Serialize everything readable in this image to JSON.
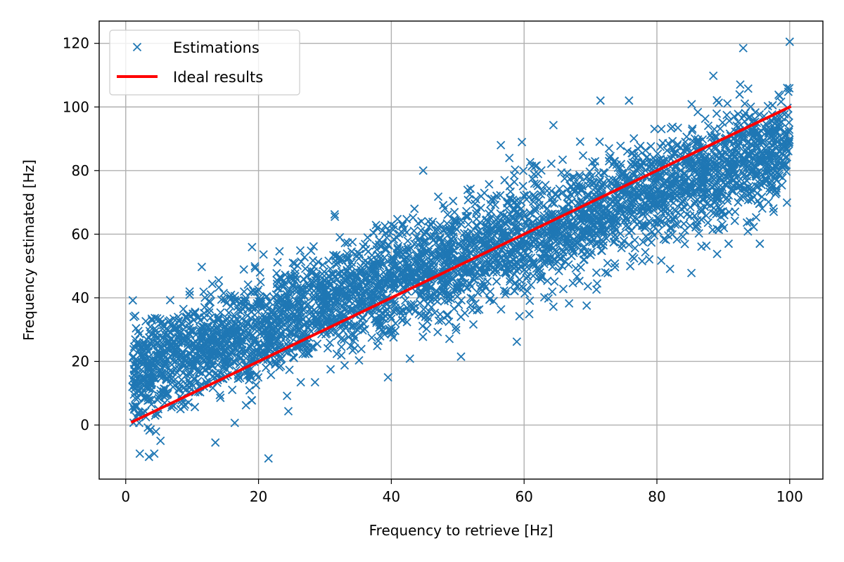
{
  "chart_data": {
    "type": "scatter",
    "title": "",
    "xlabel": "Frequency to retrieve [Hz]",
    "ylabel": "Frequency estimated [Hz]",
    "xlim": [
      -4,
      105
    ],
    "ylim": [
      -17,
      127
    ],
    "xticks": [
      0,
      20,
      40,
      60,
      80,
      100
    ],
    "yticks": [
      0,
      20,
      40,
      60,
      80,
      100,
      120
    ],
    "grid": true,
    "legend_position": "top-left",
    "series": [
      {
        "name": "Estimations",
        "kind": "scatter",
        "marker": "x",
        "color": "#1f77b4",
        "trend": {
          "x_range": [
            1,
            100
          ],
          "offset_at_x1": 15,
          "offset_at_x100": -12,
          "noise_sd": 8.5,
          "count": 4000
        },
        "outliers": [
          {
            "x": 21.5,
            "y": -10.5
          },
          {
            "x": 44.8,
            "y": 80.0
          },
          {
            "x": 58.9,
            "y": 26.2
          },
          {
            "x": 93.0,
            "y": 118.5
          },
          {
            "x": 100.0,
            "y": 120.5
          },
          {
            "x": 95.5,
            "y": 57.0
          },
          {
            "x": 85.2,
            "y": 47.8
          },
          {
            "x": 71.5,
            "y": 102.0
          },
          {
            "x": 50.5,
            "y": 21.5
          },
          {
            "x": 39.5,
            "y": 15.0
          },
          {
            "x": 31.5,
            "y": 65.5
          },
          {
            "x": 14.0,
            "y": 45.5
          },
          {
            "x": 13.5,
            "y": -5.5
          },
          {
            "x": 3.5,
            "y": -10.0
          },
          {
            "x": 1.2,
            "y": 34.0
          },
          {
            "x": 75.8,
            "y": 102.0
          },
          {
            "x": 88.5,
            "y": 109.8
          },
          {
            "x": 71.0,
            "y": 44.5
          },
          {
            "x": 90.8,
            "y": 57.0
          },
          {
            "x": 56.5,
            "y": 88.0
          }
        ]
      },
      {
        "name": "Ideal results",
        "kind": "line",
        "color": "#ff0000",
        "x": [
          1,
          100
        ],
        "y": [
          1,
          100
        ]
      }
    ]
  }
}
